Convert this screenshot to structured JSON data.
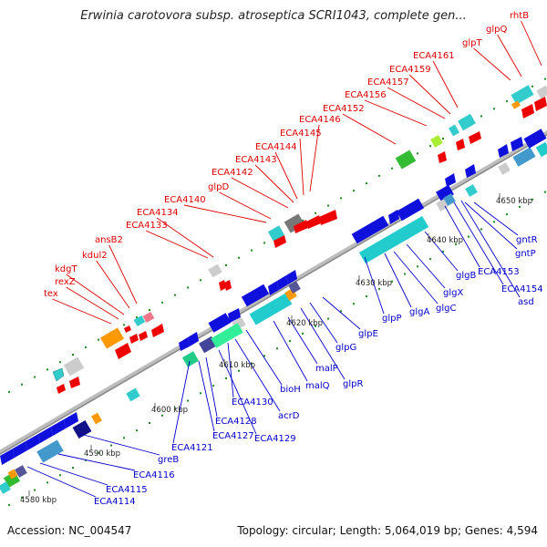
{
  "title": "Erwinia carotovora subsp. atroseptica SCRI1043, complete gen...",
  "footer": {
    "accession": "Accession: NC_004547",
    "topology": "Topology: circular; Length: 5,064,019 bp; Genes: 4,594"
  },
  "colors": {
    "forward_label": "#dd0000",
    "reverse_label": "#0000cc",
    "backbone": "#999999",
    "forward_gene": "#ee0000",
    "reverse_gene": "#1010dd",
    "cyan_block": "#22cccc",
    "gray_block": "#bbbbbb",
    "tick_dot": "#228822"
  },
  "kbp_markers": [
    "4580 kbp",
    "4590 kbp",
    "4600 kbp",
    "4610 kbp",
    "4620 kbp",
    "4630 kbp",
    "4640 kbp",
    "4650 kbp"
  ],
  "forward_labels": [
    "tex",
    "rexZ",
    "kdgT",
    "kdul2",
    "ansB2",
    "ECA4133",
    "ECA4134",
    "ECA4140",
    "glpD",
    "ECA4142",
    "ECA4143",
    "ECA4144",
    "ECA4145",
    "ECA4146",
    "ECA4152",
    "ECA4156",
    "ECA4157",
    "ECA4159",
    "ECA4161",
    "glpT",
    "glpQ",
    "rhtB"
  ],
  "reverse_labels": [
    "ECA4114",
    "ECA4115",
    "ECA4116",
    "greB",
    "ECA4121",
    "ECA4127",
    "ECA4128",
    "ECA4129",
    "ECA4130",
    "acrD",
    "bioH",
    "malQ",
    "malP",
    "glpR",
    "glpG",
    "glpE",
    "glpP",
    "glgA",
    "glgC",
    "glgX",
    "glgB",
    "ECA4153",
    "ECA4154",
    "asd",
    "gntP",
    "gntR"
  ]
}
